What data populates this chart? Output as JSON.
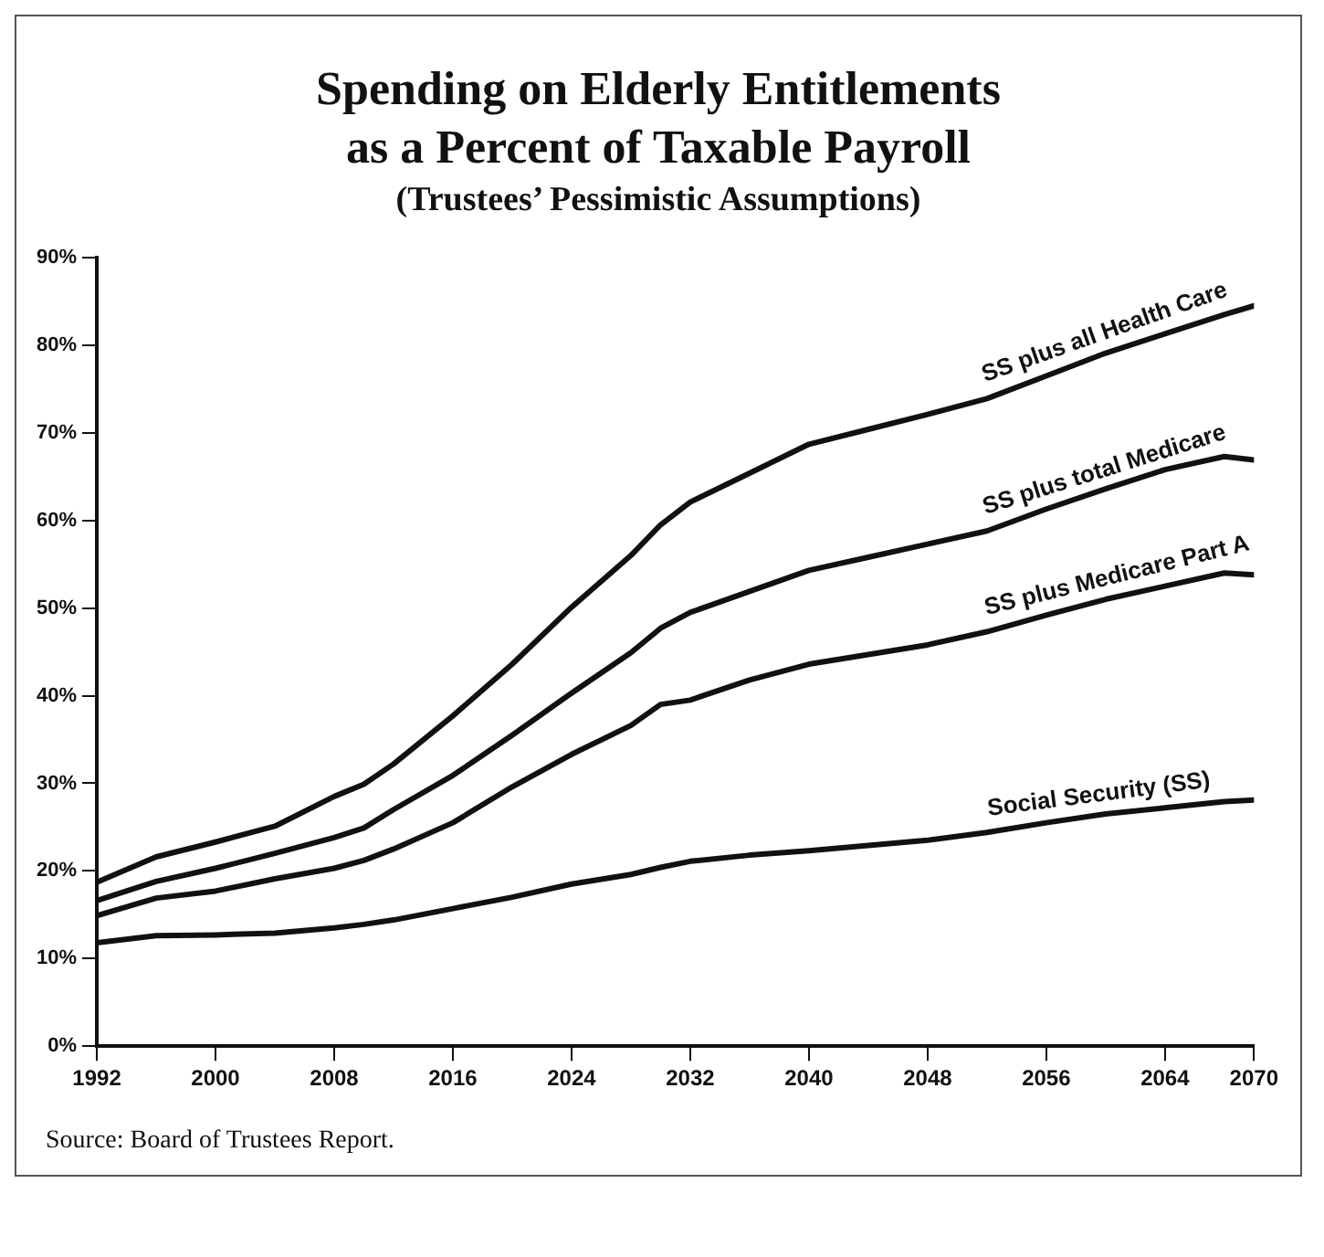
{
  "chart_data": {
    "type": "line",
    "title": "Spending on Elderly Entitlements\nas a Percent of Taxable Payroll",
    "subtitle": "(Trustees’ Pessimistic Assumptions)",
    "annotations": [
      "Source:  Board of Trustees Report."
    ],
    "x": [
      1992,
      1996,
      2000,
      2004,
      2008,
      2010,
      2012,
      2016,
      2020,
      2024,
      2028,
      2030,
      2032,
      2036,
      2040,
      2044,
      2048,
      2052,
      2056,
      2060,
      2064,
      2068,
      2070
    ],
    "series": [
      {
        "name": "SS plus all Health Care",
        "color": "#111111",
        "values": [
          18.7,
          21.6,
          23.3,
          25.1,
          28.5,
          29.9,
          32.2,
          37.7,
          43.6,
          50.1,
          56.0,
          59.5,
          62.1,
          65.4,
          68.7,
          70.4,
          72.1,
          73.9,
          76.5,
          79.1,
          81.3,
          83.5,
          84.5
        ]
      },
      {
        "name": "SS plus total Medicare",
        "color": "#111111",
        "values": [
          16.6,
          18.8,
          20.3,
          22.0,
          23.8,
          24.9,
          27.0,
          30.9,
          35.5,
          40.3,
          44.9,
          47.7,
          49.5,
          51.9,
          54.3,
          55.8,
          57.3,
          58.8,
          61.3,
          63.6,
          65.8,
          67.3,
          66.9
        ]
      },
      {
        "name": "SS plus Medicare Part A",
        "color": "#111111",
        "values": [
          14.9,
          16.9,
          17.7,
          19.1,
          20.3,
          21.2,
          22.5,
          25.5,
          29.6,
          33.3,
          36.6,
          39.0,
          39.5,
          41.8,
          43.6,
          44.7,
          45.8,
          47.3,
          49.2,
          51.0,
          52.5,
          54.0,
          53.8
        ]
      },
      {
        "name": "Social Security (SS)",
        "color": "#111111",
        "values": [
          11.8,
          12.6,
          12.7,
          12.9,
          13.5,
          13.9,
          14.4,
          15.7,
          17.0,
          18.5,
          19.6,
          20.4,
          21.1,
          21.8,
          22.3,
          22.9,
          23.5,
          24.4,
          25.5,
          26.5,
          27.2,
          27.9,
          28.1
        ]
      }
    ],
    "xlim": [
      1992,
      2070
    ],
    "xticks": [
      1992,
      2000,
      2008,
      2016,
      2024,
      2032,
      2040,
      2048,
      2056,
      2064,
      2070
    ],
    "ylim": [
      0,
      90
    ],
    "yticks": [
      {
        "value": 0,
        "label": "0%"
      },
      {
        "value": 10,
        "label": "10%"
      },
      {
        "value": 20,
        "label": "20%"
      },
      {
        "value": 30,
        "label": "30%"
      },
      {
        "value": 40,
        "label": "40%"
      },
      {
        "value": 50,
        "label": "50%"
      },
      {
        "value": 60,
        "label": "60%"
      },
      {
        "value": 70,
        "label": "70%"
      },
      {
        "value": 80,
        "label": "80%"
      },
      {
        "value": 90,
        "label": "90%"
      }
    ],
    "grid": false,
    "legend": false,
    "marker": "none",
    "line_style": "solid"
  }
}
